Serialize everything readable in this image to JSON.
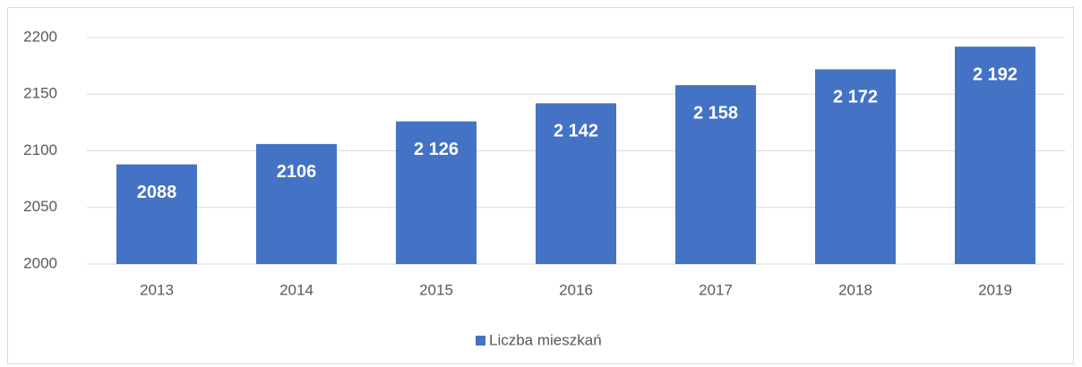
{
  "chart_data": {
    "type": "bar",
    "categories": [
      "2013",
      "2014",
      "2015",
      "2016",
      "2017",
      "2018",
      "2019"
    ],
    "series": [
      {
        "name": "Liczba mieszkań",
        "color": "#4472c4",
        "values": [
          2088,
          2106,
          2126,
          2142,
          2158,
          2172,
          2192
        ],
        "value_labels": [
          "2088",
          "2106",
          "2 126",
          "2 142",
          "2 158",
          "2 172",
          "2 192"
        ]
      }
    ],
    "ylim": [
      2000,
      2200
    ],
    "yticks": [
      2000,
      2050,
      2100,
      2150,
      2200
    ],
    "grid": true,
    "legend": "bottom"
  }
}
